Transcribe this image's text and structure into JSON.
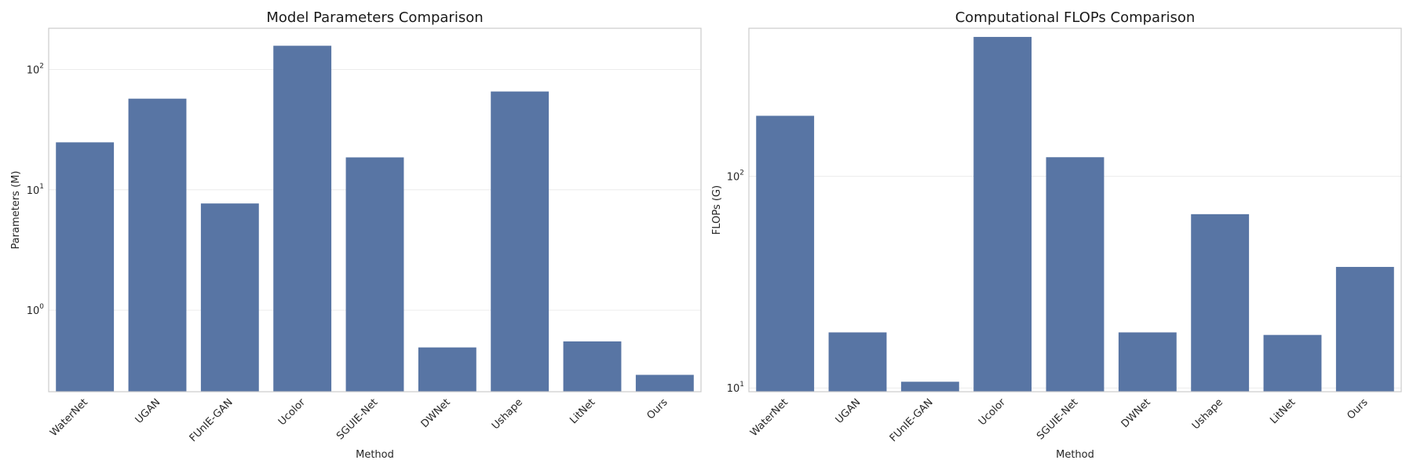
{
  "chart_data": [
    {
      "type": "bar",
      "title": "Model Parameters Comparison",
      "xlabel": "Method",
      "ylabel": "Parameters (M)",
      "yscale": "log",
      "ylim": [
        0.21,
        220
      ],
      "yticks": [
        1,
        10,
        100
      ],
      "ytick_labels": [
        {
          "base": "10",
          "exp": "0"
        },
        {
          "base": "10",
          "exp": "1"
        },
        {
          "base": "10",
          "exp": "2"
        }
      ],
      "grid": true,
      "color": "#5875a4",
      "categories": [
        "WaterNet",
        "UGAN",
        "FUnIE-GAN",
        "Ucolor",
        "SGUIE-Net",
        "DWNet",
        "Ushape",
        "LitNet",
        "Ours"
      ],
      "values": [
        24.8,
        57.2,
        7.7,
        157.4,
        18.6,
        0.49,
        65.6,
        0.55,
        0.29
      ]
    },
    {
      "type": "bar",
      "title": "Computational FLOPs Comparison",
      "xlabel": "Method",
      "ylabel": "FLOPs (G)",
      "yscale": "log",
      "ylim": [
        9.6,
        500
      ],
      "yticks": [
        10,
        100
      ],
      "ytick_labels": [
        {
          "base": "10",
          "exp": "1"
        },
        {
          "base": "10",
          "exp": "2"
        }
      ],
      "grid": true,
      "color": "#5875a4",
      "categories": [
        "WaterNet",
        "UGAN",
        "FUnIE-GAN",
        "Ucolor",
        "SGUIE-Net",
        "DWNet",
        "Ushape",
        "LitNet",
        "Ours"
      ],
      "values": [
        193,
        18.3,
        10.7,
        455,
        123,
        18.3,
        66.2,
        17.8,
        37.3
      ]
    }
  ]
}
